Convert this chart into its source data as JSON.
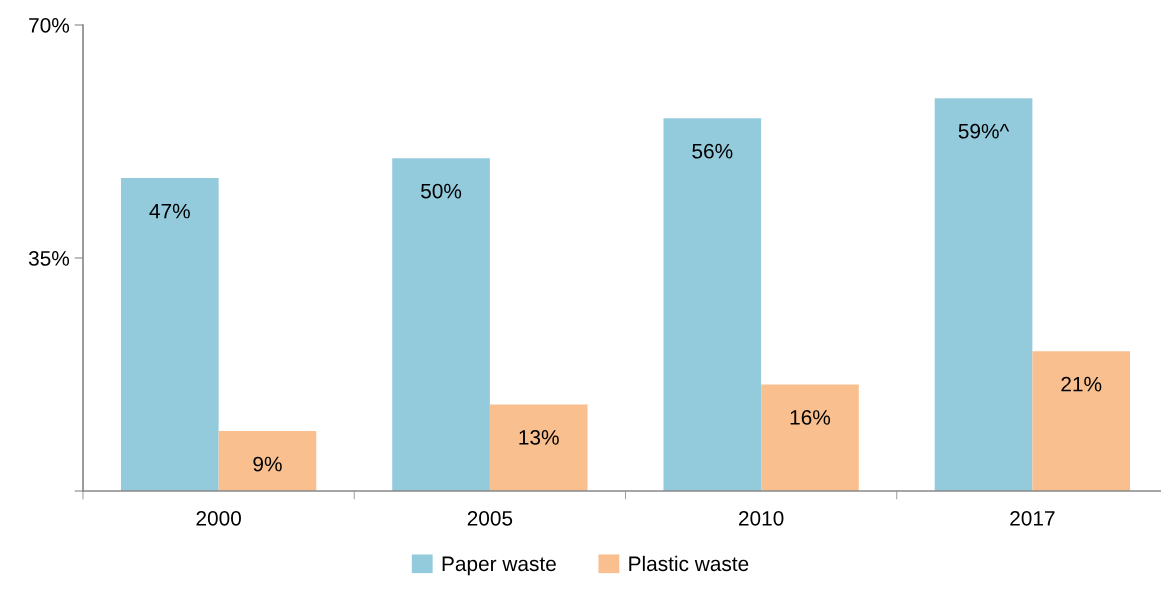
{
  "chart_data": {
    "type": "bar",
    "categories": [
      "2000",
      "2005",
      "2010",
      "2017"
    ],
    "series": [
      {
        "name": "Paper waste",
        "color": "#93cbdc",
        "values": [
          47,
          50,
          56,
          59
        ],
        "value_labels": [
          "47%",
          "50%",
          "56%",
          "59%^"
        ]
      },
      {
        "name": "Plastic waste",
        "color": "#f9bf8f",
        "values": [
          9,
          13,
          16,
          21
        ],
        "value_labels": [
          "9%",
          "13%",
          "16%",
          "21%"
        ]
      }
    ],
    "ylim": [
      0,
      70
    ],
    "yticks": [
      {
        "value": 0,
        "label": null
      },
      {
        "value": 35,
        "label": "35%"
      },
      {
        "value": 70,
        "label": "70%"
      }
    ],
    "grid": false,
    "legend": "bottom"
  }
}
